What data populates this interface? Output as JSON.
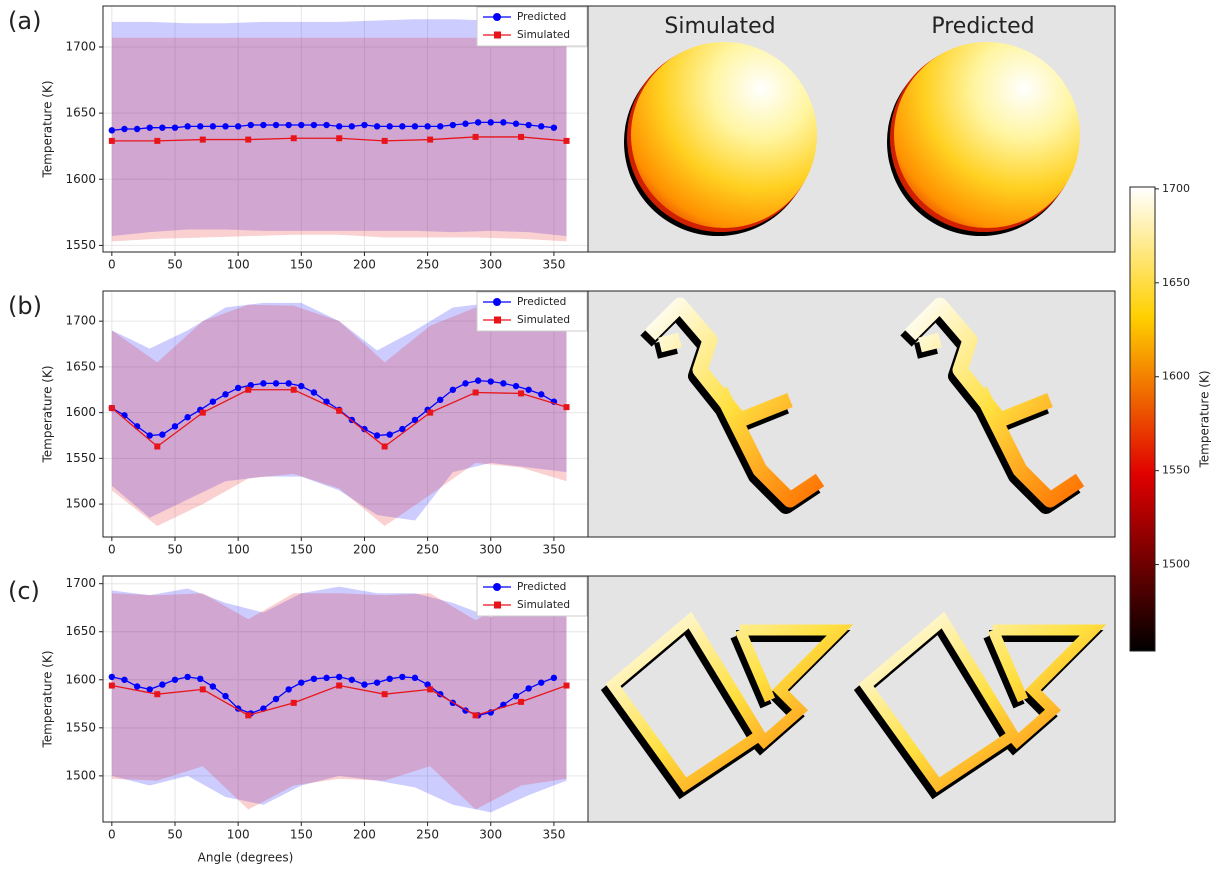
{
  "chart_data": [
    {
      "type": "line",
      "panel_label": "(a)",
      "ylabel": "Temperature (K)",
      "xlim": [
        -7,
        377
      ],
      "ylim": [
        1545,
        1731
      ],
      "xticks": [
        0,
        50,
        100,
        150,
        200,
        250,
        300,
        350
      ],
      "yticks": [
        1550,
        1600,
        1650,
        1700
      ],
      "grid": true,
      "legend": "upper right",
      "series": [
        {
          "name": "Predicted",
          "color": "#0000ff",
          "marker": "circle",
          "x": [
            0,
            10,
            20,
            30,
            40,
            50,
            60,
            70,
            80,
            90,
            100,
            110,
            120,
            130,
            140,
            150,
            160,
            170,
            180,
            190,
            200,
            210,
            220,
            230,
            240,
            250,
            260,
            270,
            280,
            290,
            300,
            310,
            320,
            330,
            340,
            350
          ],
          "values": [
            1637,
            1638,
            1638,
            1639,
            1639,
            1639,
            1640,
            1640,
            1640,
            1640,
            1640,
            1641,
            1641,
            1641,
            1641,
            1641,
            1641,
            1641,
            1640,
            1640,
            1641,
            1640,
            1640,
            1640,
            1640,
            1640,
            1640,
            1641,
            1642,
            1643,
            1643,
            1643,
            1642,
            1641,
            1640,
            1639
          ],
          "band": {
            "x": [
              0,
              30,
              60,
              90,
              120,
              150,
              180,
              210,
              240,
              270,
              300,
              330,
              360
            ],
            "upper": [
              1719,
              1719,
              1718,
              1718,
              1719,
              1719,
              1719,
              1720,
              1721,
              1721,
              1720,
              1719,
              1718
            ],
            "lower": [
              1557,
              1560,
              1562,
              1562,
              1561,
              1561,
              1561,
              1561,
              1561,
              1560,
              1561,
              1560,
              1557
            ]
          }
        },
        {
          "name": "Simulated",
          "color": "#e8141a",
          "marker": "square",
          "x": [
            0,
            36,
            72,
            108,
            144,
            180,
            216,
            252,
            288,
            324,
            360
          ],
          "values": [
            1629,
            1629,
            1630,
            1630,
            1631,
            1631,
            1629,
            1630,
            1632,
            1632,
            1629
          ],
          "band": {
            "x": [
              0,
              36,
              72,
              108,
              144,
              180,
              216,
              252,
              288,
              324,
              360
            ],
            "upper": [
              1707,
              1707,
              1707,
              1707,
              1707,
              1707,
              1707,
              1707,
              1707,
              1707,
              1707
            ],
            "lower": [
              1553,
              1555,
              1556,
              1557,
              1558,
              1558,
              1556,
              1556,
              1556,
              1555,
              1553
            ]
          }
        }
      ]
    },
    {
      "type": "line",
      "panel_label": "(b)",
      "ylabel": "Temperature (K)",
      "xlim": [
        -7,
        377
      ],
      "ylim": [
        1464,
        1733
      ],
      "xticks": [
        0,
        50,
        100,
        150,
        200,
        250,
        300,
        350
      ],
      "yticks": [
        1500,
        1550,
        1600,
        1650,
        1700
      ],
      "grid": true,
      "legend": "upper right",
      "series": [
        {
          "name": "Predicted",
          "color": "#0000ff",
          "marker": "circle",
          "x": [
            0,
            10,
            20,
            30,
            40,
            50,
            60,
            70,
            80,
            90,
            100,
            110,
            120,
            130,
            140,
            150,
            160,
            170,
            180,
            190,
            200,
            210,
            220,
            230,
            240,
            250,
            260,
            270,
            280,
            290,
            300,
            310,
            320,
            330,
            340,
            350
          ],
          "values": [
            1605,
            1597,
            1585,
            1575,
            1576,
            1585,
            1595,
            1603,
            1612,
            1620,
            1627,
            1630,
            1632,
            1632,
            1632,
            1629,
            1622,
            1612,
            1603,
            1592,
            1582,
            1575,
            1576,
            1582,
            1592,
            1603,
            1614,
            1625,
            1632,
            1635,
            1634,
            1632,
            1629,
            1625,
            1620,
            1612
          ],
          "band": {
            "x": [
              0,
              30,
              60,
              90,
              120,
              150,
              180,
              210,
              240,
              270,
              300,
              330,
              360
            ],
            "upper": [
              1690,
              1670,
              1690,
              1715,
              1720,
              1720,
              1700,
              1668,
              1690,
              1715,
              1720,
              1715,
              1700
            ],
            "lower": [
              1520,
              1485,
              1505,
              1525,
              1530,
              1530,
              1515,
              1488,
              1482,
              1535,
              1545,
              1540,
              1535
            ]
          }
        },
        {
          "name": "Simulated",
          "color": "#e8141a",
          "marker": "square",
          "x": [
            0,
            36,
            72,
            108,
            144,
            180,
            216,
            252,
            288,
            324,
            360
          ],
          "values": [
            1605,
            1563,
            1600,
            1625,
            1625,
            1602,
            1563,
            1600,
            1622,
            1621,
            1606
          ],
          "band": {
            "x": [
              0,
              36,
              72,
              108,
              144,
              180,
              216,
              252,
              288,
              324,
              360
            ],
            "upper": [
              1690,
              1655,
              1700,
              1718,
              1717,
              1700,
              1655,
              1695,
              1715,
              1712,
              1700
            ],
            "lower": [
              1515,
              1476,
              1500,
              1528,
              1533,
              1517,
              1476,
              1510,
              1545,
              1540,
              1525
            ]
          }
        }
      ]
    },
    {
      "type": "line",
      "panel_label": "(c)",
      "ylabel": "Temperature (K)",
      "xlabel": "Angle (degrees)",
      "xlim": [
        -7,
        377
      ],
      "ylim": [
        1452,
        1708
      ],
      "xticks": [
        0,
        50,
        100,
        150,
        200,
        250,
        300,
        350
      ],
      "yticks": [
        1500,
        1550,
        1600,
        1650,
        1700
      ],
      "grid": true,
      "legend": "upper right",
      "series": [
        {
          "name": "Predicted",
          "color": "#0000ff",
          "marker": "circle",
          "x": [
            0,
            10,
            20,
            30,
            40,
            50,
            60,
            70,
            80,
            90,
            100,
            110,
            120,
            130,
            140,
            150,
            160,
            170,
            180,
            190,
            200,
            210,
            220,
            230,
            240,
            250,
            260,
            270,
            280,
            290,
            300,
            310,
            320,
            330,
            340,
            350
          ],
          "values": [
            1603,
            1600,
            1593,
            1590,
            1595,
            1600,
            1603,
            1601,
            1593,
            1583,
            1570,
            1565,
            1570,
            1580,
            1590,
            1597,
            1601,
            1602,
            1603,
            1600,
            1595,
            1597,
            1601,
            1603,
            1602,
            1595,
            1585,
            1576,
            1568,
            1563,
            1566,
            1574,
            1583,
            1591,
            1597,
            1602
          ],
          "band": {
            "x": [
              0,
              30,
              60,
              90,
              120,
              150,
              180,
              210,
              240,
              270,
              300,
              330,
              360
            ],
            "upper": [
              1693,
              1688,
              1695,
              1680,
              1670,
              1690,
              1697,
              1690,
              1690,
              1680,
              1665,
              1680,
              1692
            ],
            "lower": [
              1500,
              1490,
              1500,
              1478,
              1470,
              1490,
              1500,
              1495,
              1488,
              1470,
              1462,
              1480,
              1495
            ]
          }
        },
        {
          "name": "Simulated",
          "color": "#e8141a",
          "marker": "square",
          "x": [
            0,
            36,
            72,
            108,
            144,
            180,
            216,
            252,
            288,
            324,
            360
          ],
          "values": [
            1594,
            1585,
            1590,
            1563,
            1576,
            1594,
            1585,
            1590,
            1563,
            1577,
            1594
          ],
          "band": {
            "x": [
              0,
              36,
              72,
              108,
              144,
              180,
              216,
              252,
              288,
              324,
              360
            ],
            "upper": [
              1690,
              1688,
              1690,
              1663,
              1690,
              1690,
              1688,
              1690,
              1662,
              1688,
              1690
            ],
            "lower": [
              1497,
              1495,
              1510,
              1465,
              1490,
              1497,
              1495,
              1510,
              1465,
              1490,
              1497
            ]
          }
        }
      ]
    }
  ],
  "image_titles": [
    "Simulated",
    "Predicted"
  ],
  "colorbar": {
    "label": "Temperature (K)",
    "lim": [
      1454,
      1701
    ],
    "ticks": [
      1500,
      1550,
      1600,
      1650,
      1700
    ]
  }
}
